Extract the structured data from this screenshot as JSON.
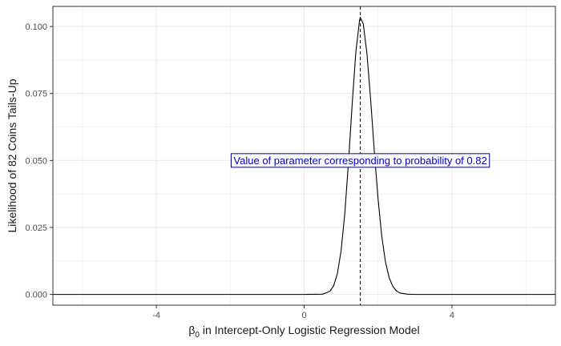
{
  "chart_data": {
    "type": "line",
    "title": "",
    "xlabel_prefix": "β",
    "xlabel_subscript": "0",
    "xlabel_suffix": " in Intercept-Only Logistic Regression Model",
    "ylabel": "Likelihood of 82 Coins Tails-Up",
    "xlim": [
      -6.8,
      6.8
    ],
    "ylim": [
      -0.004,
      0.1075
    ],
    "x_ticks": [
      -4,
      0,
      4
    ],
    "x_tick_labels": [
      "-4",
      "0",
      "4"
    ],
    "y_ticks": [
      0.0,
      0.025,
      0.05,
      0.075,
      0.1
    ],
    "y_tick_labels": [
      "0.000",
      "0.025",
      "0.050",
      "0.075",
      "0.100"
    ],
    "grid": true,
    "series": [
      {
        "x": [
          -6.8,
          -3.0,
          0.0,
          0.5,
          0.7,
          0.8,
          0.9,
          1.0,
          1.1,
          1.2,
          1.3,
          1.4,
          1.5,
          1.52,
          1.6,
          1.7,
          1.8,
          1.9,
          2.0,
          2.1,
          2.2,
          2.3,
          2.4,
          2.5,
          2.6,
          2.8,
          3.0,
          4.0,
          6.8
        ],
        "y": [
          0.0,
          0.0,
          0.0,
          0.0001,
          0.0012,
          0.0033,
          0.0078,
          0.0163,
          0.0301,
          0.0493,
          0.071,
          0.0906,
          0.1024,
          0.1034,
          0.101,
          0.0899,
          0.0726,
          0.0533,
          0.0357,
          0.0218,
          0.0122,
          0.0063,
          0.003,
          0.0013,
          0.0005,
          0.0001,
          0.0,
          0.0,
          0.0
        ]
      }
    ],
    "vline_x": 1.52,
    "annotation": {
      "text": "Value of parameter corresponding to probability of 0.82",
      "x": 1.52,
      "y": 0.05
    },
    "colors": {
      "curve": "#000000",
      "vline": "#00008b",
      "annotation_text": "#0000cc",
      "annotation_border": "#00008b",
      "grid": "#ebebeb",
      "panel_border": "#333333"
    }
  }
}
